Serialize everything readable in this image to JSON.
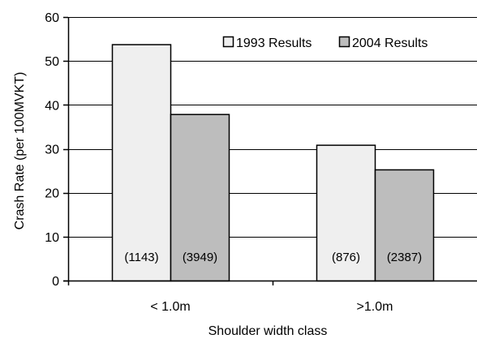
{
  "chart_data": {
    "type": "bar",
    "title": "",
    "xlabel": "Shoulder width class",
    "ylabel": "Crash Rate (per 100MVKT)",
    "categories": [
      "< 1.0m",
      ">1.0m"
    ],
    "ylim": [
      0,
      60
    ],
    "yticks": [
      0,
      10,
      20,
      30,
      40,
      50,
      60
    ],
    "grid": true,
    "legend_position": "top-right",
    "series": [
      {
        "name": "1993 Results",
        "color": "#efefef",
        "values": [
          53.8,
          30.9
        ],
        "labels": [
          "(1143)",
          "(876)"
        ]
      },
      {
        "name": "2004 Results",
        "color": "#bdbdbd",
        "values": [
          37.9,
          25.3
        ],
        "labels": [
          "(3949)",
          "(2387)"
        ]
      }
    ]
  }
}
